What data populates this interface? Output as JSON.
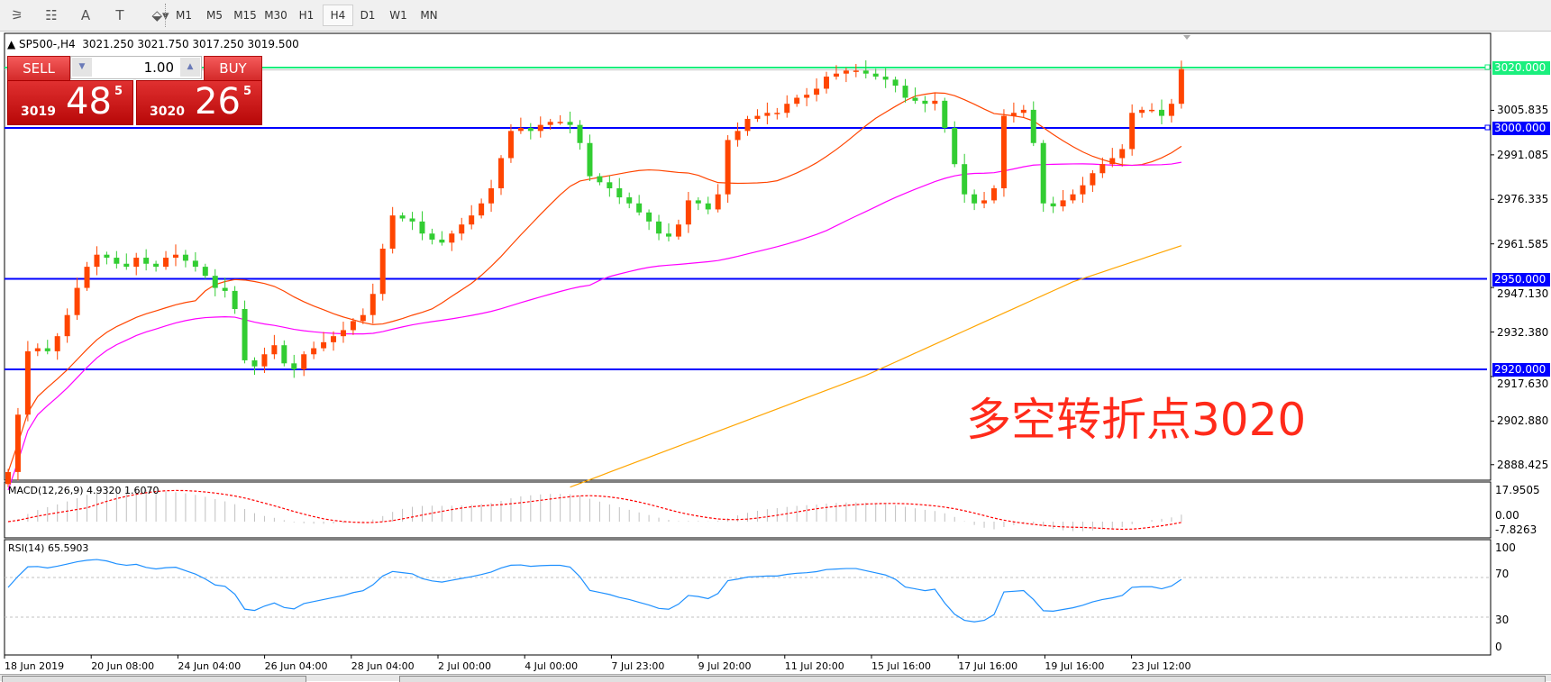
{
  "toolbar": {
    "tools": [
      {
        "icon": "elliott-wave-icon",
        "glyph": "⚞"
      },
      {
        "icon": "fibonacci-icon",
        "glyph": "☷"
      },
      {
        "icon": "text-icon",
        "glyph": "A"
      },
      {
        "icon": "text-label-icon",
        "glyph": "T"
      },
      {
        "icon": "arrows-icon",
        "glyph": "⬙▾"
      }
    ],
    "timeframes": [
      "M1",
      "M5",
      "M15",
      "M30",
      "H1",
      "H4",
      "D1",
      "W1",
      "MN"
    ],
    "active_timeframe": "H4"
  },
  "chart": {
    "symbol": "SP500-,H4",
    "ohlc": "3021.250 3021.750 3017.250 3019.500",
    "colors": {
      "up": "#ff4500",
      "down": "#32cd32",
      "ma_fast": "#ff4500",
      "ma_mid": "#ff00ff",
      "ma_slow": "#ffa500",
      "level": "#0000ff",
      "price_line": "#1aef7d"
    },
    "annotation": "多空转折点3020",
    "price_axis": [
      "3005.835",
      "2991.085",
      "2976.335",
      "2961.585",
      "2947.130",
      "2932.380",
      "2917.630",
      "2902.880",
      "2888.425"
    ],
    "levels": [
      "3020.000",
      "3000.000",
      "2950.000",
      "2920.000"
    ],
    "time_axis": [
      "18 Jun 2019",
      "20 Jun 08:00",
      "24 Jun 04:00",
      "26 Jun 04:00",
      "28 Jun 04:00",
      "2 Jul 00:00",
      "4 Jul 00:00",
      "7 Jul 23:00",
      "9 Jul 20:00",
      "11 Jul 20:00",
      "15 Jul 16:00",
      "17 Jul 16:00",
      "19 Jul 16:00",
      "23 Jul 12:00"
    ]
  },
  "trade_panel": {
    "sell_label": "SELL",
    "buy_label": "BUY",
    "lot": "1.00",
    "sell_price": {
      "big": "3019",
      "main": "48",
      "sup": "5"
    },
    "buy_price": {
      "big": "3020",
      "main": "26",
      "sup": "5"
    }
  },
  "macd": {
    "label": "MACD(12,26,9) 4.9320 1.6070",
    "axis": [
      "17.9505",
      "0.00",
      "-7.8263"
    ]
  },
  "rsi": {
    "label": "RSI(14) 65.5903",
    "axis": [
      "100",
      "70",
      "30",
      "0"
    ]
  },
  "chart_data": {
    "type": "candlestick",
    "closes": [
      2886,
      2905,
      2926,
      2927,
      2926,
      2931,
      2938,
      2947,
      2954,
      2958,
      2957,
      2955,
      2954,
      2957,
      2955,
      2954,
      2957,
      2958,
      2956,
      2954,
      2951,
      2947,
      2946,
      2940,
      2923,
      2921,
      2925,
      2928,
      2922,
      2920,
      2925,
      2927,
      2929,
      2931,
      2933,
      2936,
      2938,
      2945,
      2960,
      2971,
      2970,
      2969,
      2965,
      2963,
      2962,
      2965,
      2968,
      2971,
      2975,
      2980,
      2990,
      2999,
      3000,
      2999,
      3001,
      3002,
      3002,
      3001,
      2995,
      2984,
      2982,
      2980,
      2977,
      2975,
      2972,
      2969,
      2965,
      2964,
      2968,
      2976,
      2975,
      2973,
      2978,
      2996,
      2999,
      3003,
      3004,
      3005,
      3005,
      3008,
      3010,
      3011,
      3013,
      3017,
      3018,
      3019,
      3019,
      3018,
      3017,
      3016,
      3014,
      3010,
      3009,
      3008,
      3009,
      3000,
      2988,
      2978,
      2975,
      2976,
      2980,
      3004,
      3005,
      3006,
      2995,
      2975,
      2974,
      2976,
      2978,
      2981,
      2985,
      2988,
      2990,
      2993,
      3005,
      3006,
      3006,
      3004,
      3008,
      3019.5
    ],
    "slow_ma_points": [
      [
        57,
        2881
      ],
      [
        87,
        2918
      ],
      [
        108,
        2949
      ],
      [
        119,
        2961
      ]
    ],
    "ylim": [
      2883,
      3031
    ]
  }
}
